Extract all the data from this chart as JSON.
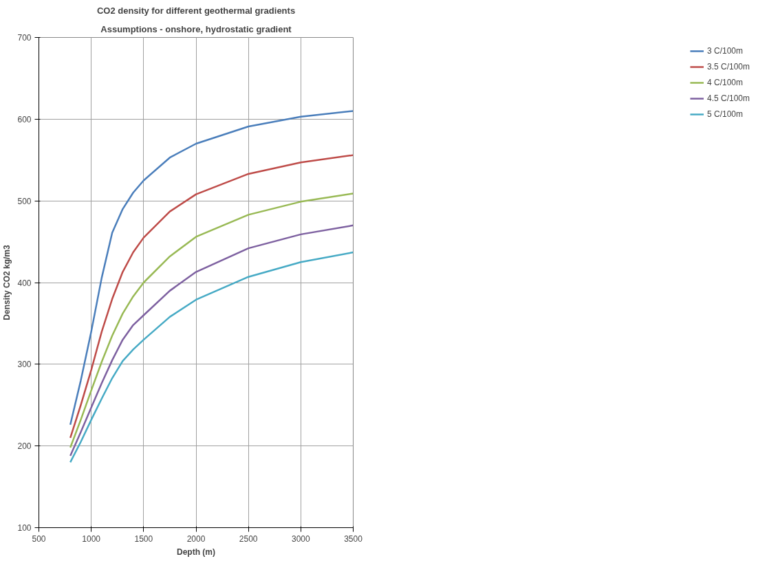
{
  "chart_data": {
    "type": "line",
    "title": "CO2 density for different geothermal gradients",
    "subtitle": "Assumptions - onshore, hydrostatic gradient",
    "xlabel": "Depth (m)",
    "ylabel": "Density CO2 kg/m3",
    "x": [
      800,
      900,
      1000,
      1100,
      1200,
      1300,
      1400,
      1500,
      1750,
      2000,
      2500,
      3000,
      3500
    ],
    "series": [
      {
        "name": "3 C/100m",
        "color": "#4a7ebb",
        "values": [
          226,
          280,
          340,
          406,
          461,
          490,
          510,
          525,
          553,
          570,
          591,
          603,
          610
        ]
      },
      {
        "name": "3.5 C/100m",
        "color": "#be4b48",
        "values": [
          210,
          250,
          293,
          340,
          380,
          413,
          437,
          455,
          487,
          508,
          533,
          547,
          556
        ]
      },
      {
        "name": "4 C/100m",
        "color": "#98b954",
        "values": [
          198,
          232,
          268,
          303,
          335,
          362,
          383,
          400,
          432,
          456,
          483,
          499,
          509
        ]
      },
      {
        "name": "4.5 C/100m",
        "color": "#7d60a0",
        "values": [
          188,
          217,
          247,
          277,
          305,
          330,
          348,
          360,
          390,
          413,
          442,
          459,
          470
        ]
      },
      {
        "name": "5 C/100m",
        "color": "#46aac5",
        "values": [
          180,
          205,
          232,
          258,
          283,
          304,
          318,
          330,
          358,
          379,
          407,
          425,
          437
        ]
      }
    ],
    "xlim": [
      500,
      3500
    ],
    "xticks": [
      500,
      1000,
      1500,
      2000,
      2500,
      3000,
      3500
    ],
    "ylim": [
      100,
      700
    ],
    "yticks": [
      100,
      200,
      300,
      400,
      500,
      600,
      700
    ],
    "grid": true,
    "legend": "right",
    "marker": "none",
    "line_style": "solid"
  }
}
